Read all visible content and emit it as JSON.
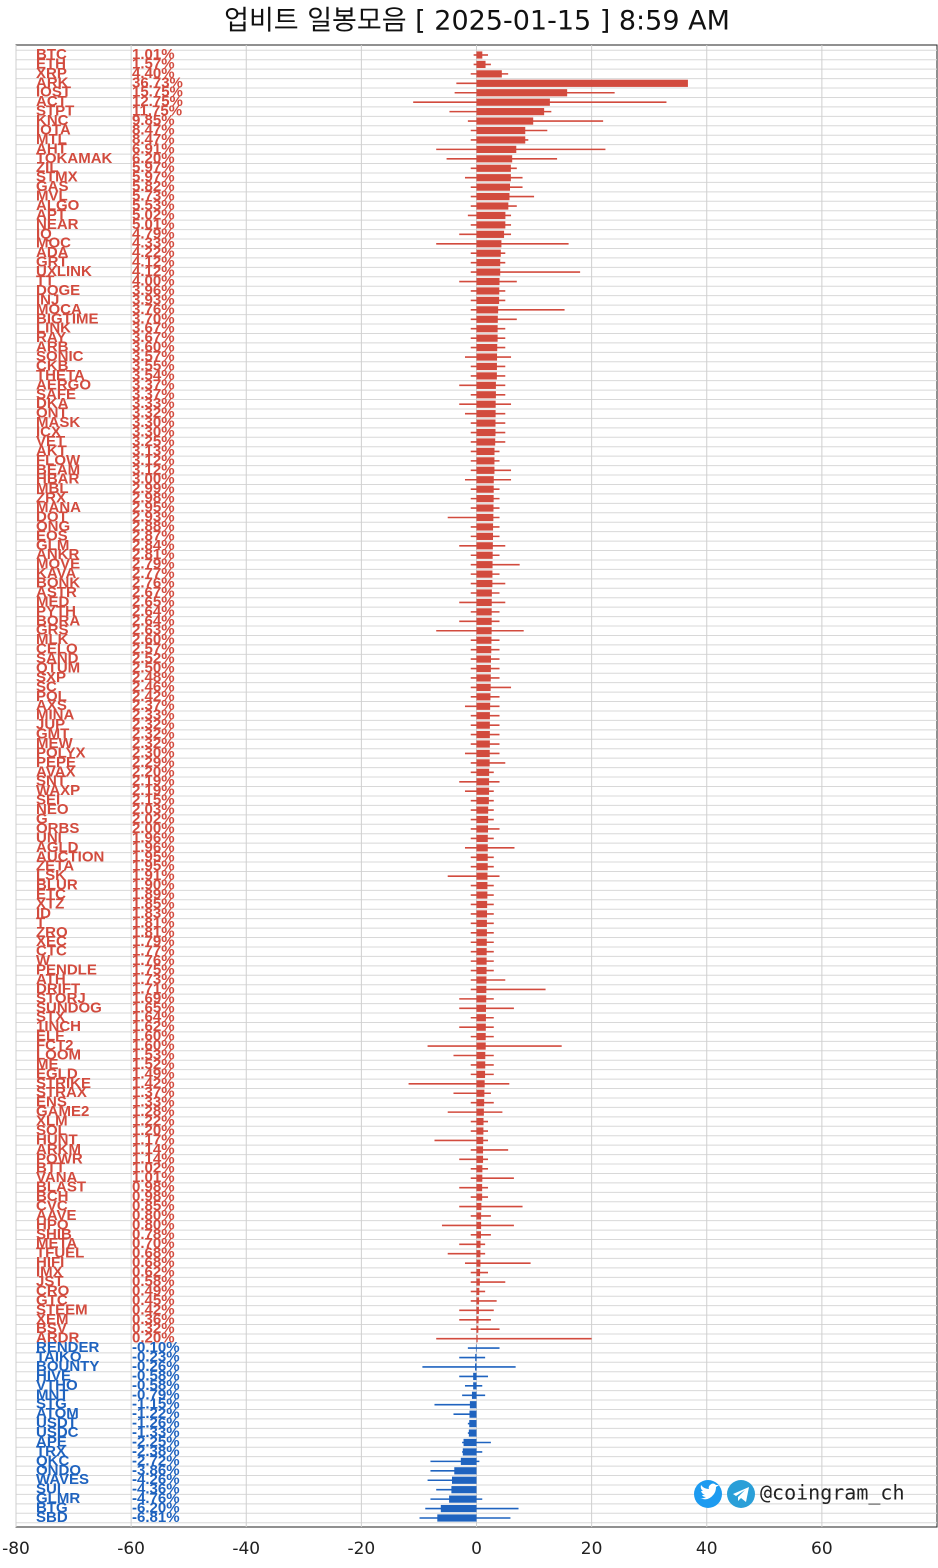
{
  "chart_data": {
    "type": "bar",
    "orientation": "horizontal",
    "title": "업비트 일봉모음 [ 2025-01-15 ]  8:59 AM",
    "watermark": "@coingram_ch",
    "xlim": [
      -80,
      80
    ],
    "xticks": [
      -80,
      -60,
      -40,
      -20,
      0,
      20,
      40,
      60
    ],
    "grid": true,
    "colors": {
      "positive": "#d24b3e",
      "negative": "#1f63bf",
      "range_positive": "#d24b3e",
      "range_negative": "#1f63bf"
    },
    "categories": [
      "BTC",
      "ETH",
      "XRP",
      "ARK",
      "IOST",
      "ACT",
      "STPT",
      "KNC",
      "IOTA",
      "MTL",
      "AHT",
      "TOKAMAK",
      "ZIL",
      "STMX",
      "GAS",
      "MVL",
      "ALGO",
      "APT",
      "NEAR",
      "IQ",
      "MOC",
      "ADA",
      "GRT",
      "UXLINK",
      "TT",
      "DOGE",
      "INJ",
      "MOCA",
      "BIGTIME",
      "LINK",
      "RAY",
      "ARB",
      "SONIC",
      "CKB",
      "THETA",
      "AERGO",
      "SAFE",
      "DKA",
      "ONT",
      "MASK",
      "ICX",
      "VET",
      "AKT",
      "FLOW",
      "BEAM",
      "HBAR",
      "MBL",
      "ZRX",
      "MANA",
      "DOT",
      "ONG",
      "EOS",
      "GLM",
      "ANKR",
      "MOVE",
      "KAVA",
      "BONK",
      "ASTR",
      "MED",
      "PYTH",
      "BORA",
      "GRS",
      "MLK",
      "CELO",
      "SAND",
      "QTUM",
      "SXP",
      "SC",
      "POL",
      "AXS",
      "MINA",
      "JUP",
      "GMT",
      "MEW",
      "POLYX",
      "PEPE",
      "AVAX",
      "SNT",
      "WAXP",
      "SEI",
      "NEO",
      "G",
      "ORBS",
      "UNI",
      "AGLD",
      "AUCTION",
      "ZETA",
      "LSK",
      "BLUR",
      "ETC",
      "XTZ",
      "ID",
      "T",
      "ZRO",
      "XEC",
      "CTC",
      "W",
      "PENDLE",
      "ATH",
      "DRIFT",
      "STORJ",
      "SUNDOG",
      "STX",
      "1INCH",
      "ELF",
      "FCT2",
      "LOOM",
      "ME",
      "EGLD",
      "STRIKE",
      "STRAX",
      "ENS",
      "GAME2",
      "XLM",
      "SOL",
      "HUNT",
      "ARKM",
      "POWR",
      "BTT",
      "VANA",
      "BLAST",
      "BCH",
      "CVC",
      "AAVE",
      "HPO",
      "SHIB",
      "META",
      "TFUEL",
      "HIFI",
      "IMX",
      "JST",
      "CRO",
      "GTC",
      "STEEM",
      "XEM",
      "BSV",
      "ARDR",
      "RENDER",
      "TAIKO",
      "BOUNTY",
      "HIVE",
      "VTHO",
      "MNT",
      "STG",
      "ATOM",
      "USDT",
      "USDC",
      "APE",
      "TRX",
      "QKC",
      "ONDO",
      "WAVES",
      "SUI",
      "GLMR",
      "BTG",
      "SBD"
    ],
    "values": [
      1.01,
      1.57,
      4.4,
      36.73,
      15.75,
      12.75,
      11.75,
      9.85,
      8.47,
      8.47,
      6.91,
      6.2,
      5.97,
      5.97,
      5.82,
      5.73,
      5.53,
      5.02,
      5.01,
      4.79,
      4.33,
      4.22,
      4.12,
      4.12,
      4.0,
      3.96,
      3.93,
      3.76,
      3.7,
      3.67,
      3.67,
      3.6,
      3.57,
      3.55,
      3.54,
      3.37,
      3.37,
      3.33,
      3.32,
      3.3,
      3.3,
      3.25,
      3.13,
      3.12,
      3.12,
      3.0,
      2.99,
      2.98,
      2.95,
      2.93,
      2.88,
      2.87,
      2.84,
      2.81,
      2.79,
      2.77,
      2.76,
      2.67,
      2.65,
      2.64,
      2.64,
      2.63,
      2.6,
      2.57,
      2.52,
      2.5,
      2.48,
      2.46,
      2.42,
      2.37,
      2.33,
      2.32,
      2.32,
      2.32,
      2.3,
      2.29,
      2.2,
      2.19,
      2.19,
      2.15,
      2.03,
      2.02,
      2.0,
      1.96,
      1.96,
      1.95,
      1.95,
      1.91,
      1.9,
      1.89,
      1.85,
      1.83,
      1.81,
      1.81,
      1.79,
      1.77,
      1.76,
      1.75,
      1.73,
      1.71,
      1.69,
      1.65,
      1.64,
      1.62,
      1.6,
      1.6,
      1.53,
      1.52,
      1.49,
      1.42,
      1.37,
      1.33,
      1.28,
      1.22,
      1.2,
      1.17,
      1.14,
      1.14,
      1.02,
      1.01,
      0.98,
      0.98,
      0.85,
      0.8,
      0.8,
      0.78,
      0.7,
      0.68,
      0.68,
      0.62,
      0.58,
      0.49,
      0.45,
      0.42,
      0.36,
      0.32,
      0.2,
      -0.1,
      -0.23,
      -0.26,
      -0.58,
      -0.58,
      -0.79,
      -1.15,
      -1.22,
      -1.26,
      -1.33,
      -2.25,
      -2.38,
      -2.72,
      -3.86,
      -4.26,
      -4.36,
      -4.76,
      -6.2,
      -6.81
    ],
    "value_labels": [
      "1.01%",
      "1.57%",
      "4.40%",
      "36.73%",
      "15.75%",
      "12.75%",
      "11.75%",
      "9.85%",
      "8.47%",
      "8.47%",
      "6.91%",
      "6.20%",
      "5.97%",
      "5.97%",
      "5.82%",
      "5.73%",
      "5.53%",
      "5.02%",
      "5.01%",
      "4.79%",
      "4.33%",
      "4.22%",
      "4.12%",
      "4.12%",
      "4.00%",
      "3.96%",
      "3.93%",
      "3.76%",
      "3.70%",
      "3.67%",
      "3.67%",
      "3.60%",
      "3.57%",
      "3.55%",
      "3.54%",
      "3.37%",
      "3.37%",
      "3.33%",
      "3.32%",
      "3.30%",
      "3.30%",
      "3.25%",
      "3.13%",
      "3.12%",
      "3.12%",
      "3.00%",
      "2.99%",
      "2.98%",
      "2.95%",
      "2.93%",
      "2.88%",
      "2.87%",
      "2.84%",
      "2.81%",
      "2.79%",
      "2.77%",
      "2.76%",
      "2.67%",
      "2.65%",
      "2.64%",
      "2.64%",
      "2.63%",
      "2.60%",
      "2.57%",
      "2.52%",
      "2.50%",
      "2.48%",
      "2.46%",
      "2.42%",
      "2.37%",
      "2.33%",
      "2.32%",
      "2.32%",
      "2.32%",
      "2.30%",
      "2.29%",
      "2.20%",
      "2.19%",
      "2.19%",
      "2.15%",
      "2.03%",
      "2.02%",
      "2.00%",
      "1.96%",
      "1.96%",
      "1.95%",
      "1.95%",
      "1.91%",
      "1.90%",
      "1.89%",
      "1.85%",
      "1.83%",
      "1.81%",
      "1.81%",
      "1.79%",
      "1.77%",
      "1.76%",
      "1.75%",
      "1.73%",
      "1.71%",
      "1.69%",
      "1.65%",
      "1.64%",
      "1.62%",
      "1.60%",
      "1.60%",
      "1.53%",
      "1.52%",
      "1.49%",
      "1.42%",
      "1.37%",
      "1.33%",
      "1.28%",
      "1.22%",
      "1.20%",
      "1.17%",
      "1.14%",
      "1.14%",
      "1.02%",
      "1.01%",
      "0.98%",
      "0.98%",
      "0.85%",
      "0.80%",
      "0.80%",
      "0.78%",
      "0.70%",
      "0.68%",
      "0.68%",
      "0.62%",
      "0.58%",
      "0.49%",
      "0.45%",
      "0.42%",
      "0.36%",
      "0.32%",
      "0.20%",
      "-0.10%",
      "-0.23%",
      "-0.26%",
      "-0.58%",
      "-0.58%",
      "-0.79%",
      "-1.15%",
      "-1.22%",
      "-1.26%",
      "-1.33%",
      "-2.25%",
      "-2.38%",
      "-2.72%",
      "-3.86%",
      "-4.26%",
      "-4.36%",
      "-4.76%",
      "-6.20%",
      "-6.81%"
    ],
    "range_low": [
      -0.5,
      -0.5,
      -1,
      -3.5,
      -3.8,
      -11,
      -4.7,
      -1.5,
      -1,
      -1,
      -7,
      -5.2,
      -1,
      -2,
      -1,
      -1,
      -1,
      -1.5,
      -1,
      -3,
      -7,
      -1,
      -1,
      -1,
      -3,
      -1,
      -1,
      -1,
      -1,
      -1,
      -1,
      -1,
      -2,
      -1,
      -1,
      -3,
      -1,
      -3,
      -2,
      -1,
      -1,
      -1,
      -1,
      -1,
      -1,
      -2,
      -1,
      -1,
      -1,
      -5,
      -1,
      -1,
      -3,
      -1,
      -1,
      -1,
      -1,
      -1,
      -3,
      -1,
      -3,
      -7,
      -1,
      -1,
      -1,
      -1,
      -1,
      -1,
      -1,
      -2,
      -1,
      -1,
      -1,
      -1,
      -2,
      -1,
      -1,
      -3,
      -2,
      -1,
      -1,
      -1,
      -1,
      -1,
      -2,
      -1,
      -1,
      -5,
      -1,
      -1,
      -1,
      -1,
      -1,
      -1,
      -1,
      -1,
      -1,
      -1,
      -1,
      -1,
      -3,
      -3,
      -1,
      -3,
      -1,
      -8.5,
      -4,
      -1,
      -1,
      -11.8,
      -4,
      -1,
      -5,
      -1,
      -1,
      -7.3,
      -1,
      -3,
      -1,
      -1,
      -3,
      -1,
      -3,
      -1,
      -6,
      -1,
      -3,
      -5,
      -2,
      -1,
      -1,
      -1,
      -1,
      -3,
      -3,
      -1,
      -7,
      -1.5,
      -3,
      -9.4,
      -3,
      -2,
      -2.5,
      -7.3,
      -4,
      -1.5,
      -1.5,
      -2.5,
      -2.5,
      -8,
      -8,
      -8.5,
      -7,
      -8,
      -8.9,
      -9.9
    ],
    "range_high": [
      2,
      2.5,
      5.5,
      32.5,
      24,
      33,
      13,
      22,
      12.3,
      9,
      22.4,
      14,
      7,
      8,
      8,
      10,
      7,
      6,
      6,
      6,
      16,
      5,
      5,
      18,
      7,
      5,
      5,
      15.3,
      7,
      5,
      5,
      5,
      6,
      5,
      5,
      5,
      5,
      6,
      5,
      5,
      5,
      5,
      4,
      4,
      6,
      6,
      4,
      4,
      4,
      4,
      4,
      4,
      5,
      4,
      7.5,
      4,
      5,
      4,
      5,
      4,
      4,
      8.2,
      4,
      4,
      4,
      4,
      4,
      6,
      4,
      4,
      4,
      4,
      4,
      4,
      4,
      5,
      3,
      4,
      3,
      3,
      3,
      3,
      4,
      3,
      6.6,
      3,
      3,
      4,
      3,
      3,
      3,
      3,
      3,
      3,
      3,
      3,
      3,
      3,
      5,
      12,
      3,
      6.5,
      3,
      3,
      3,
      14.8,
      3,
      3,
      3,
      5.7,
      2.5,
      3,
      4.5,
      2,
      2,
      2,
      5.5,
      2,
      2,
      6.5,
      2,
      2,
      8,
      2.5,
      6.5,
      2.5,
      1.5,
      1.5,
      9.4,
      2,
      5,
      1.5,
      3.5,
      3,
      2.5,
      4,
      20,
      4,
      1.5,
      6.8,
      2,
      1,
      1.5,
      -1,
      0,
      0,
      0,
      2.5,
      1,
      0.5,
      0,
      0,
      0,
      1,
      7.3,
      5.9
    ]
  }
}
